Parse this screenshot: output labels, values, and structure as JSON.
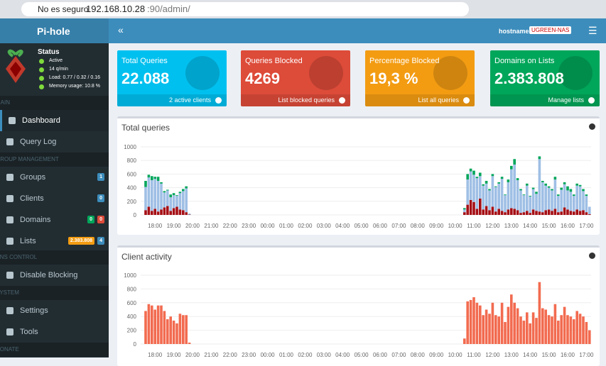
{
  "browser": {
    "security": "No es seguro",
    "url_host": "192.168.10.28",
    "url_path": ":90/admin/"
  },
  "header": {
    "brand": "Pi-hole",
    "hostname_label": "hostname:",
    "hostname": "UGREEN-NAS"
  },
  "status": {
    "title": "Status",
    "items": [
      "Active",
      "14 q/min",
      "Load: 0.77 / 0.32 / 0.16",
      "Memory usage: 10.8 %"
    ]
  },
  "menu": [
    {
      "section": "MAIN",
      "items": [
        {
          "label": "Dashboard",
          "badges": []
        },
        {
          "label": "Query Log",
          "badges": []
        }
      ]
    },
    {
      "section": "GROUP MANAGEMENT",
      "items": [
        {
          "label": "Groups",
          "badges": [
            "1"
          ]
        },
        {
          "label": "Clients",
          "badges": [
            "0"
          ]
        },
        {
          "label": "Domains",
          "badges": [
            "0",
            "0"
          ]
        },
        {
          "label": "Lists",
          "badges": [
            "2.383.808",
            "4"
          ]
        }
      ]
    },
    {
      "section": "DNS CONTROL",
      "items": [
        {
          "label": "Disable Blocking",
          "badges": []
        }
      ]
    },
    {
      "section": "SYSTEM",
      "items": [
        {
          "label": "Settings",
          "badges": []
        },
        {
          "label": "Tools",
          "badges": []
        }
      ]
    },
    {
      "section": "DONATE",
      "items": []
    }
  ],
  "stats": [
    {
      "title": "Total Queries",
      "value": "22.088",
      "link": "2 active clients",
      "color": "#00c0ef"
    },
    {
      "title": "Queries Blocked",
      "value": "4269",
      "link": "List blocked queries",
      "color": "#dd4b39"
    },
    {
      "title": "Percentage Blocked",
      "value": "19,3 %",
      "link": "List all queries",
      "color": "#f39c12"
    },
    {
      "title": "Domains on Lists",
      "value": "2.383.808",
      "link": "Manage lists",
      "color": "#00a65a"
    }
  ],
  "time_axis": {
    "categories": [
      null,
      null,
      null,
      "18:00",
      null,
      null,
      null,
      null,
      null,
      "19:00",
      null,
      null,
      null,
      null,
      null,
      "20:00",
      null,
      null,
      null,
      null,
      null,
      "21:00",
      null,
      null,
      null,
      null,
      null,
      "22:00",
      null,
      null,
      null,
      null,
      null,
      "23:00",
      null,
      null,
      null,
      null,
      null,
      "00:00",
      null,
      null,
      null,
      null,
      null,
      "01:00",
      null,
      null,
      null,
      null,
      null,
      "02:00",
      null,
      null,
      null,
      null,
      null,
      "03:00",
      null,
      null,
      null,
      null,
      null,
      "04:00",
      null,
      null,
      null,
      null,
      null,
      "05:00",
      null,
      null,
      null,
      null,
      null,
      "06:00",
      null,
      null,
      null,
      null,
      null,
      "07:00",
      null,
      null,
      null,
      null,
      null,
      "08:00",
      null,
      null,
      null,
      null,
      null,
      "09:00",
      null,
      null,
      null,
      null,
      null,
      "10:00",
      null,
      null,
      null,
      null,
      null,
      "11:00",
      null,
      null,
      null,
      null,
      null,
      "12:00",
      null,
      null,
      null,
      null,
      null,
      "13:00",
      null,
      null,
      null,
      null,
      null,
      "14:00",
      null,
      null,
      null,
      null,
      null,
      "15:00",
      null,
      null,
      null,
      null,
      null,
      "16:00",
      null,
      null,
      null,
      null,
      null,
      "17:00",
      null
    ]
  },
  "queries_chart": {
    "type": "bar",
    "stacked": true,
    "title": "Total queries",
    "ylim": [
      0,
      1000
    ],
    "yticks": [
      0,
      200,
      400,
      600,
      800,
      1000
    ],
    "grid": true,
    "series": [
      {
        "color": "#a50f15",
        "values": [
          70,
          120,
          60,
          90,
          50,
          80,
          110,
          130,
          60,
          100,
          120,
          80,
          70,
          40,
          5,
          null,
          null,
          null,
          null,
          null,
          null,
          null,
          null,
          null,
          null,
          null,
          null,
          null,
          null,
          null,
          null,
          null,
          null,
          null,
          null,
          null,
          null,
          null,
          null,
          null,
          null,
          null,
          null,
          null,
          null,
          null,
          null,
          null,
          null,
          null,
          null,
          null,
          null,
          null,
          null,
          null,
          null,
          null,
          null,
          null,
          null,
          null,
          null,
          null,
          null,
          null,
          null,
          null,
          null,
          null,
          null,
          null,
          null,
          null,
          null,
          null,
          null,
          null,
          null,
          null,
          null,
          null,
          null,
          null,
          null,
          null,
          null,
          null,
          null,
          null,
          null,
          null,
          null,
          null,
          null,
          null,
          null,
          null,
          null,
          null,
          null,
          null,
          40,
          150,
          220,
          190,
          90,
          240,
          80,
          130,
          70,
          120,
          50,
          90,
          60,
          40,
          80,
          100,
          90,
          70,
          30,
          40,
          60,
          30,
          80,
          60,
          50,
          40,
          70,
          80,
          60,
          90,
          40,
          50,
          110,
          80,
          60,
          50,
          80,
          60,
          70,
          40,
          10
        ]
      },
      {
        "color": "#9fbfe5",
        "values": [
          340,
          430,
          450,
          440,
          450,
          380,
          220,
          230,
          200,
          190,
          160,
          240,
          280,
          350,
          15,
          null,
          null,
          null,
          null,
          null,
          null,
          null,
          null,
          null,
          null,
          null,
          null,
          null,
          null,
          null,
          null,
          null,
          null,
          null,
          null,
          null,
          null,
          null,
          null,
          null,
          null,
          null,
          null,
          null,
          null,
          null,
          null,
          null,
          null,
          null,
          null,
          null,
          null,
          null,
          null,
          null,
          null,
          null,
          null,
          null,
          null,
          null,
          null,
          null,
          null,
          null,
          null,
          null,
          null,
          null,
          null,
          null,
          null,
          null,
          null,
          null,
          null,
          null,
          null,
          null,
          null,
          null,
          null,
          null,
          null,
          null,
          null,
          null,
          null,
          null,
          null,
          null,
          null,
          null,
          null,
          null,
          null,
          null,
          null,
          null,
          null,
          null,
          40,
          370,
          420,
          400,
          450,
          330,
          350,
          330,
          290,
          450,
          360,
          370,
          470,
          250,
          400,
          570,
          650,
          440,
          330,
          250,
          370,
          240,
          300,
          250,
          770,
          440,
          360,
          320,
          300,
          430,
          240,
          320,
          340,
          280,
          280,
          230,
          350,
          360,
          280,
          240,
          110
        ]
      },
      {
        "color": "#00a65a",
        "values": [
          90,
          40,
          60,
          30,
          60,
          20,
          20,
          10,
          40,
          30,
          10,
          20,
          30,
          30,
          0,
          null,
          null,
          null,
          null,
          null,
          null,
          null,
          null,
          null,
          null,
          null,
          null,
          null,
          null,
          null,
          null,
          null,
          null,
          null,
          null,
          null,
          null,
          null,
          null,
          null,
          null,
          null,
          null,
          null,
          null,
          null,
          null,
          null,
          null,
          null,
          null,
          null,
          null,
          null,
          null,
          null,
          null,
          null,
          null,
          null,
          null,
          null,
          null,
          null,
          null,
          null,
          null,
          null,
          null,
          null,
          null,
          null,
          null,
          null,
          null,
          null,
          null,
          null,
          null,
          null,
          null,
          null,
          null,
          null,
          null,
          null,
          null,
          null,
          null,
          null,
          null,
          null,
          null,
          null,
          null,
          null,
          null,
          null,
          null,
          null,
          null,
          null,
          20,
          80,
          40,
          60,
          20,
          50,
          20,
          40,
          20,
          30,
          10,
          20,
          30,
          10,
          40,
          50,
          80,
          30,
          20,
          10,
          30,
          10,
          20,
          30,
          40,
          20,
          30,
          20,
          20,
          40,
          20,
          30,
          30,
          60,
          40,
          20,
          30,
          20,
          30,
          20,
          0
        ]
      }
    ]
  },
  "client_chart": {
    "type": "bar",
    "title": "Client activity",
    "ylim": [
      0,
      1000
    ],
    "yticks": [
      0,
      200,
      400,
      600,
      800,
      1000
    ],
    "grid": true,
    "series": [
      {
        "color": "#f26b50",
        "values": [
          480,
          580,
          560,
          500,
          560,
          560,
          480,
          360,
          400,
          340,
          300,
          440,
          420,
          420,
          20,
          null,
          null,
          null,
          null,
          null,
          null,
          null,
          null,
          null,
          null,
          null,
          null,
          null,
          null,
          null,
          null,
          null,
          null,
          null,
          null,
          null,
          null,
          null,
          null,
          null,
          null,
          null,
          null,
          null,
          null,
          null,
          null,
          null,
          null,
          null,
          null,
          null,
          null,
          null,
          null,
          null,
          null,
          null,
          null,
          null,
          null,
          null,
          null,
          null,
          null,
          null,
          null,
          null,
          null,
          null,
          null,
          null,
          null,
          null,
          null,
          null,
          null,
          null,
          null,
          null,
          null,
          null,
          null,
          null,
          null,
          null,
          null,
          null,
          null,
          null,
          null,
          null,
          null,
          null,
          null,
          null,
          null,
          null,
          null,
          null,
          null,
          null,
          80,
          620,
          640,
          680,
          600,
          560,
          420,
          500,
          440,
          600,
          420,
          400,
          600,
          320,
          540,
          720,
          600,
          520,
          400,
          340,
          460,
          300,
          460,
          380,
          900,
          520,
          500,
          420,
          400,
          580,
          340,
          420,
          540,
          420,
          400,
          360,
          480,
          440,
          400,
          320,
          200
        ]
      }
    ]
  }
}
